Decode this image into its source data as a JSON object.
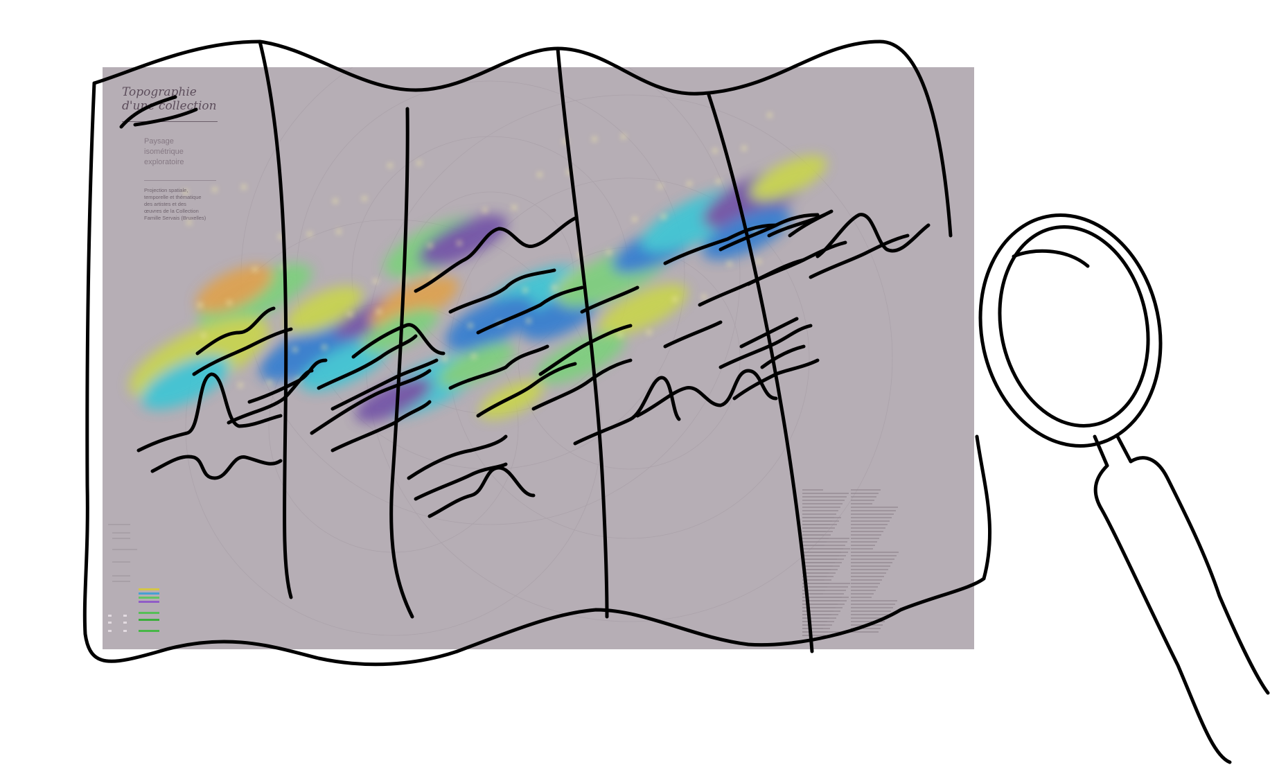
{
  "poster": {
    "title": "Topographie\nd'une collection",
    "subtitle": "Paysage\nisométrique\nexploratoire",
    "description": "Projection spatiale,\ntemporelle et thématique\ndes artistes et des\nœuvres de la Collection\nFamille Servais (Bruxelles)"
  },
  "colors": {
    "poster_background": "#b6aeb5",
    "sketch_stroke": "#000000",
    "landscape_palette": [
      "#2e7bd1",
      "#38c6d6",
      "#7ad17a",
      "#c9d64a",
      "#e0a14a",
      "#6f4fa6"
    ]
  },
  "icons": {
    "magnifier": "magnifying-glass-icon",
    "map": "folded-map-icon"
  }
}
